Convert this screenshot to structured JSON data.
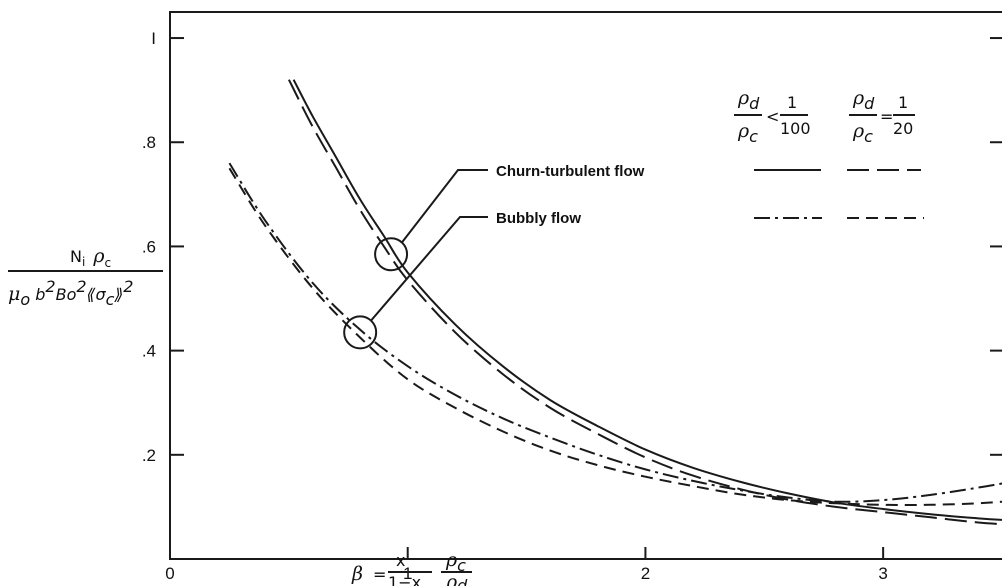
{
  "chart_data": {
    "type": "line",
    "xlim": [
      0,
      3.5
    ],
    "ylim": [
      0,
      1.05
    ],
    "x_ticks": [
      {
        "value": 0,
        "label": "0"
      },
      {
        "value": 1,
        "label": "1"
      },
      {
        "value": 2,
        "label": "2"
      },
      {
        "value": 3,
        "label": "3"
      }
    ],
    "y_ticks": [
      {
        "value": 0.2,
        "label": ".2"
      },
      {
        "value": 0.4,
        "label": ".4"
      },
      {
        "value": 0.6,
        "label": ".6"
      },
      {
        "value": 0.8,
        "label": ".8"
      },
      {
        "value": 1.0,
        "label": "I"
      }
    ],
    "grid": false,
    "ylabel": {
      "numerator": "N_i ρ_c",
      "denominator": "μ_o b² Bo² ⟪σ_c⟫²"
    },
    "xlabel": "β = x/(1−x) · ρ_c/ρ_d",
    "legend": {
      "column_headers": [
        "ρ_d/ρ_c < 1/100",
        "ρ_d/ρ_c = 1/20"
      ],
      "rows": [
        "Churn-turbulent flow",
        "Bubbly flow"
      ],
      "placement": "top-right"
    },
    "series": [
      {
        "style": "solid",
        "x": [
          0.52,
          0.6,
          0.7,
          0.8,
          0.9,
          1.0,
          1.2,
          1.4,
          1.6,
          1.8,
          2.0,
          2.2,
          2.4,
          2.6,
          2.8,
          3.0,
          3.2,
          3.4,
          3.5
        ],
        "values": [
          0.92,
          0.85,
          0.77,
          0.69,
          0.62,
          0.55,
          0.45,
          0.37,
          0.305,
          0.255,
          0.21,
          0.175,
          0.148,
          0.126,
          0.108,
          0.096,
          0.086,
          0.078,
          0.075
        ]
      },
      {
        "style": "long-dash",
        "x": [
          0.5,
          0.6,
          0.7,
          0.8,
          0.9,
          1.0,
          1.2,
          1.4,
          1.6,
          1.8,
          2.0,
          2.2,
          2.4,
          2.6,
          2.8,
          3.0,
          3.2,
          3.4,
          3.5
        ],
        "values": [
          0.92,
          0.83,
          0.75,
          0.67,
          0.6,
          0.535,
          0.435,
          0.355,
          0.29,
          0.24,
          0.195,
          0.16,
          0.134,
          0.114,
          0.1,
          0.09,
          0.08,
          0.07,
          0.067
        ]
      },
      {
        "style": "dash-dot",
        "x": [
          0.25,
          0.4,
          0.6,
          0.8,
          1.0,
          1.2,
          1.4,
          1.6,
          1.8,
          2.0,
          2.2,
          2.4,
          2.6,
          2.8,
          3.0,
          3.2,
          3.4,
          3.5
        ],
        "values": [
          0.76,
          0.65,
          0.53,
          0.44,
          0.37,
          0.315,
          0.27,
          0.233,
          0.2,
          0.172,
          0.15,
          0.132,
          0.118,
          0.11,
          0.113,
          0.123,
          0.137,
          0.145
        ]
      },
      {
        "style": "short-dash",
        "x": [
          0.25,
          0.4,
          0.6,
          0.8,
          1.0,
          1.2,
          1.4,
          1.6,
          1.8,
          2.0,
          2.2,
          2.4,
          2.6,
          2.8,
          3.0,
          3.2,
          3.4,
          3.5
        ],
        "values": [
          0.75,
          0.64,
          0.52,
          0.425,
          0.345,
          0.29,
          0.245,
          0.208,
          0.18,
          0.158,
          0.14,
          0.124,
          0.113,
          0.107,
          0.104,
          0.104,
          0.107,
          0.11
        ]
      }
    ]
  }
}
